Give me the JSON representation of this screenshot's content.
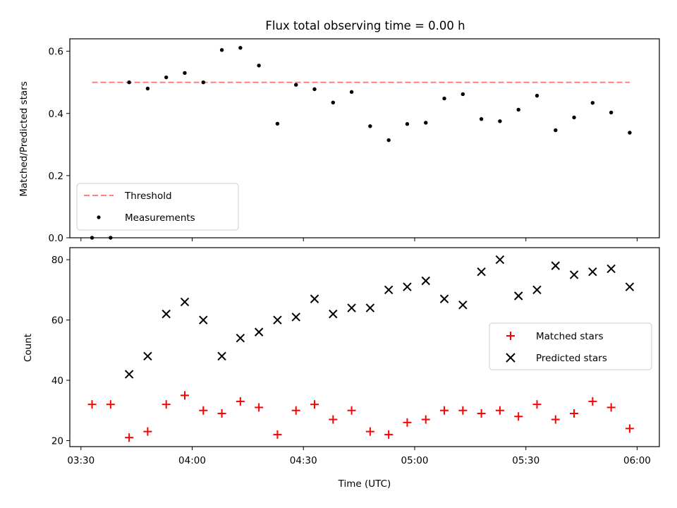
{
  "chart_data": [
    {
      "type": "scatter",
      "title": "Flux total observing time = 0.00 h",
      "ylabel": "Matched/Predicted stars",
      "xlim": [
        "03:27",
        "06:06"
      ],
      "ylim": [
        0,
        0.64
      ],
      "x_ticks": [
        "03:30",
        "04:00",
        "04:30",
        "05:00",
        "05:30",
        "06:00"
      ],
      "y_ticks": [
        "0.0",
        "0.2",
        "0.4",
        "0.6"
      ],
      "y_tick_values": [
        0,
        0.2,
        0.4,
        0.6
      ],
      "legend": {
        "position": "lower left",
        "entries": [
          "Threshold",
          "Measurements"
        ]
      },
      "threshold": {
        "name": "Threshold",
        "value": 0.5,
        "x_start": "03:33",
        "x_end": "05:58",
        "color": "#ff7f7f"
      },
      "series": [
        {
          "name": "Measurements",
          "color": "#000000",
          "x": [
            "03:33",
            "03:38",
            "03:43",
            "03:48",
            "03:53",
            "03:58",
            "04:03",
            "04:08",
            "04:13",
            "04:18",
            "04:23",
            "04:28",
            "04:33",
            "04:38",
            "04:43",
            "04:48",
            "04:53",
            "04:58",
            "05:03",
            "05:08",
            "05:13",
            "05:18",
            "05:23",
            "05:28",
            "05:33",
            "05:38",
            "05:43",
            "05:48",
            "05:53",
            "05:58"
          ],
          "y": [
            0.0,
            0.0,
            0.5,
            0.48,
            0.516,
            0.53,
            0.5,
            0.604,
            0.611,
            0.554,
            0.367,
            0.492,
            0.478,
            0.435,
            0.469,
            0.359,
            0.314,
            0.366,
            0.37,
            0.448,
            0.462,
            0.382,
            0.375,
            0.412,
            0.457,
            0.346,
            0.387,
            0.434,
            0.403,
            0.338
          ]
        }
      ]
    },
    {
      "type": "scatter",
      "title": "",
      "xlabel": "Time (UTC)",
      "ylabel": "Count",
      "xlim": [
        "03:27",
        "06:06"
      ],
      "ylim": [
        18,
        84
      ],
      "x_ticks": [
        "03:30",
        "04:00",
        "04:30",
        "05:00",
        "05:30",
        "06:00"
      ],
      "y_ticks": [
        "20",
        "40",
        "60",
        "80"
      ],
      "y_tick_values": [
        20,
        40,
        60,
        80
      ],
      "legend": {
        "position": "center right",
        "entries": [
          "Matched stars",
          "Predicted stars"
        ]
      },
      "series": [
        {
          "name": "Matched stars",
          "marker": "+",
          "color": "#ff0000",
          "x": [
            "03:33",
            "03:38",
            "03:43",
            "03:48",
            "03:53",
            "03:58",
            "04:03",
            "04:08",
            "04:13",
            "04:18",
            "04:23",
            "04:28",
            "04:33",
            "04:38",
            "04:43",
            "04:48",
            "04:53",
            "04:58",
            "05:03",
            "05:08",
            "05:13",
            "05:18",
            "05:23",
            "05:28",
            "05:33",
            "05:38",
            "05:43",
            "05:48",
            "05:53",
            "05:58"
          ],
          "y": [
            32,
            32,
            21,
            23,
            32,
            35,
            30,
            29,
            33,
            31,
            22,
            30,
            32,
            27,
            30,
            23,
            22,
            26,
            27,
            30,
            30,
            29,
            30,
            28,
            32,
            27,
            29,
            33,
            31,
            24
          ]
        },
        {
          "name": "Predicted stars",
          "marker": "x",
          "color": "#000000",
          "x": [
            "03:43",
            "03:48",
            "03:53",
            "03:58",
            "04:03",
            "04:08",
            "04:13",
            "04:18",
            "04:23",
            "04:28",
            "04:33",
            "04:38",
            "04:43",
            "04:48",
            "04:53",
            "04:58",
            "05:03",
            "05:08",
            "05:13",
            "05:18",
            "05:23",
            "05:28",
            "05:33",
            "05:38",
            "05:43",
            "05:48",
            "05:53",
            "05:58"
          ],
          "y": [
            42,
            48,
            62,
            66,
            60,
            48,
            54,
            56,
            60,
            61,
            67,
            62,
            64,
            64,
            70,
            71,
            73,
            67,
            65,
            76,
            80,
            68,
            70,
            78,
            75,
            76,
            77,
            71
          ]
        }
      ]
    }
  ]
}
